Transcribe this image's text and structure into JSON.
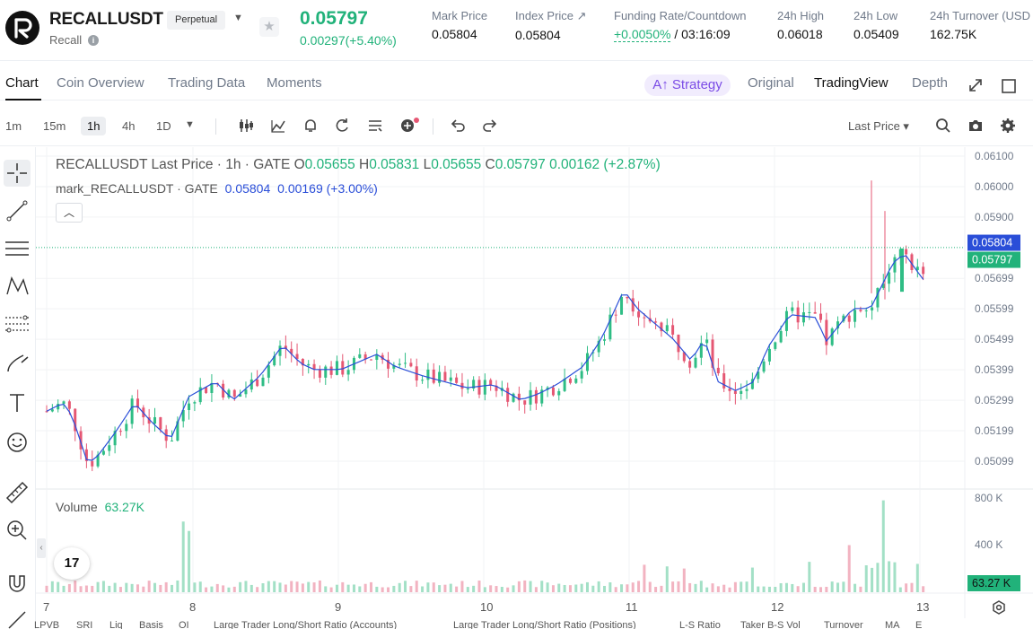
{
  "header": {
    "symbol": "RECALLUSDT",
    "contract_type": "Perpetual",
    "name": "Recall",
    "last_price": "0.05797",
    "price_change": "0.00297(+5.40%)",
    "stats": [
      {
        "label": "Mark Price",
        "value": "0.05804"
      },
      {
        "label": "Index Price ↗",
        "value": "0.05804"
      },
      {
        "label": "Funding Rate/Countdown",
        "value": "+0.0050%",
        "value2": " / 03:16:09"
      },
      {
        "label": "24h High",
        "value": "0.06018"
      },
      {
        "label": "24h Low",
        "value": "0.05409"
      },
      {
        "label": "24h Turnover (USD",
        "value": "162.75K"
      }
    ]
  },
  "tabs": {
    "left": [
      "Chart",
      "Coin Overview",
      "Trading Data",
      "Moments"
    ],
    "strategy": "A↑ Strategy",
    "right": [
      "Original",
      "TradingView",
      "Depth"
    ]
  },
  "toolbar": {
    "timeframes": [
      "1m",
      "15m",
      "1h",
      "4h",
      "1D"
    ],
    "active_timeframe": "1h",
    "price_type": "Last Price ▾"
  },
  "legend": {
    "main_title": "RECALLUSDT Last Price · 1h · GATE",
    "o_label": "O",
    "o": "0.05655",
    "h_label": "H",
    "h": "0.05831",
    "l_label": "L",
    "l": "0.05655",
    "c_label": "C",
    "c": "0.05797",
    "chg": "0.00162 (+2.87%)",
    "mark_title": "mark_RECALLUSDT · GATE",
    "mark_value": "0.05804",
    "mark_chg": "0.00169 (+3.00%)",
    "volume_label": "Volume",
    "volume_value": "63.27K"
  },
  "chart_data": {
    "type": "candlestick",
    "price_axis": [
      "0.06100",
      "0.06000",
      "0.05900",
      "0.05699",
      "0.05599",
      "0.05499",
      "0.05399",
      "0.05299",
      "0.05199",
      "0.05099"
    ],
    "price_range": [
      0.0504,
      0.0612
    ],
    "mark_price_tag": "0.05804",
    "last_price_tag": "0.05797",
    "volume_axis": [
      "800 K",
      "400 K"
    ],
    "volume_tag": "63.27 K",
    "x_labels": [
      "7",
      "8",
      "9",
      "10",
      "11",
      "12",
      "13"
    ],
    "colors": {
      "up": "#2fbd85",
      "down": "#e55773",
      "mark_line": "#2a4ed8",
      "mark_tag": "#2a4ed8",
      "last_tag": "#21b27a"
    }
  },
  "bottom_tabs": [
    "LPVB",
    "SRI",
    "Liq",
    "Basis",
    "OI",
    "Large Trader Long/Short Ratio (Accounts)",
    "Large Trader Long/Short Ratio (Positions)",
    "L-S Ratio",
    "Taker B-S Vol",
    "Turnover",
    "MA",
    "E"
  ],
  "tv_logo": "17"
}
